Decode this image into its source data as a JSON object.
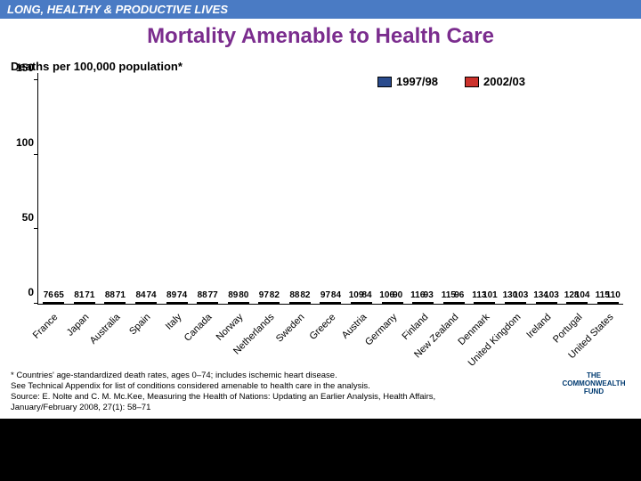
{
  "header_band": "LONG, HEALTHY & PRODUCTIVE LIVES",
  "title": "Mortality Amenable to Health Care",
  "subtitle": "Deaths per 100,000 population*",
  "legend": {
    "series1": {
      "label": "1997/98",
      "color": "#2a4b8d"
    },
    "series2": {
      "label": "2002/03",
      "color": "#cc322c"
    }
  },
  "y_axis": {
    "ticks": [
      0,
      50,
      100,
      150
    ],
    "max": 155
  },
  "categories": [
    "France",
    "Japan",
    "Australia",
    "Spain",
    "Italy",
    "Canada",
    "Norway",
    "Netherlands",
    "Sweden",
    "Greece",
    "Austria",
    "Germany",
    "Finland",
    "New Zealand",
    "Denmark",
    "United Kingdom",
    "Ireland",
    "Portugal",
    "United States"
  ],
  "series1_values": [
    76,
    81,
    88,
    84,
    89,
    88,
    89,
    97,
    88,
    97,
    109,
    106,
    116,
    115,
    113,
    130,
    134,
    128,
    115
  ],
  "series2_values": [
    65,
    71,
    71,
    74,
    74,
    77,
    80,
    82,
    82,
    84,
    84,
    90,
    93,
    96,
    101,
    103,
    103,
    104,
    110
  ],
  "colors": {
    "background": "#ffffff",
    "page_bg": "#000000",
    "band_bg": "#4a7bc4",
    "title_color": "#7b2d8e",
    "bar1": "#2a4b8d",
    "bar2": "#cc322c",
    "axis": "#000000"
  },
  "footnote_lines": [
    "* Countries' age-standardized death rates, ages 0–74; includes ischemic heart disease.",
    "See Technical Appendix for list of conditions considered amenable to health care in the analysis.",
    "Source: E. Nolte and C. M. Mc.Kee, Measuring the Health of Nations: Updating an Earlier Analysis, Health Affairs,",
    "January/February 2008, 27(1): 58–71"
  ],
  "footer_logo_lines": [
    "THE",
    "COMMONWEALTH",
    "FUND"
  ]
}
